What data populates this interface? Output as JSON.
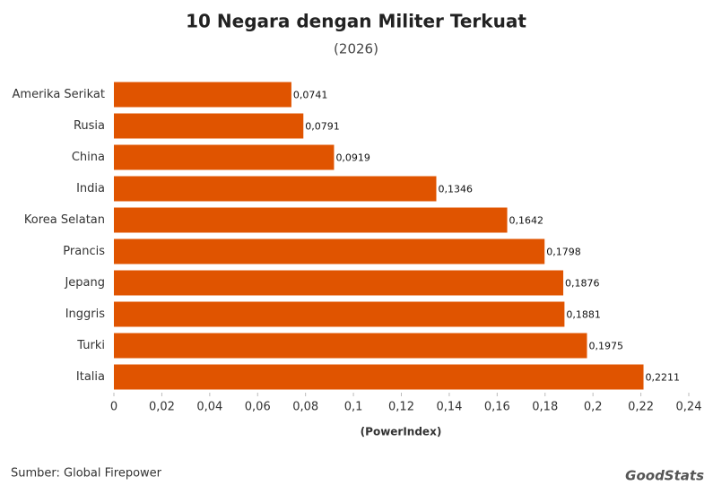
{
  "chart_data": {
    "type": "hbar",
    "title": "10 Negara dengan Militer Terkuat",
    "subtitle": "(2026)",
    "x_label": "(PowerIndex)",
    "source": "Sumber: Global Firepower",
    "brand": "GoodStats",
    "categories": [
      "Amerika Serikat",
      "Rusia",
      "China",
      "India",
      "Korea Selatan",
      "Prancis",
      "Jepang",
      "Inggris",
      "Turki",
      "Italia"
    ],
    "values": [
      0.0741,
      0.0791,
      0.0919,
      0.1346,
      0.1642,
      0.1798,
      0.1876,
      0.1881,
      0.1975,
      0.2211
    ],
    "value_labels": [
      "0,0741",
      "0,0791",
      "0,0919",
      "0,1346",
      "0,1642",
      "0,1798",
      "0,1876",
      "0,1881",
      "0,1975",
      "0,2211"
    ],
    "color": "#e05400",
    "xlim": [
      0,
      0.24
    ],
    "xticks": [
      0,
      {
        "value": 0.02,
        "label": "0,02"
      },
      {
        "value": 0.04,
        "label": "0,04"
      },
      {
        "value": 0.06,
        "label": "0,06"
      },
      {
        "value": 0.08,
        "label": "0,08"
      },
      {
        "value": 0.1,
        "label": "0,1"
      },
      {
        "value": 0.12,
        "label": "0,12"
      },
      {
        "value": 0.14,
        "label": "0,14"
      },
      {
        "value": 0.16,
        "label": "0,16"
      },
      {
        "value": 0.18,
        "label": "0,18"
      },
      {
        "value": 0.2,
        "label": "0,2"
      },
      {
        "value": 0.22,
        "label": "0,22"
      },
      {
        "value": 0.24,
        "label": "0,24"
      }
    ]
  }
}
